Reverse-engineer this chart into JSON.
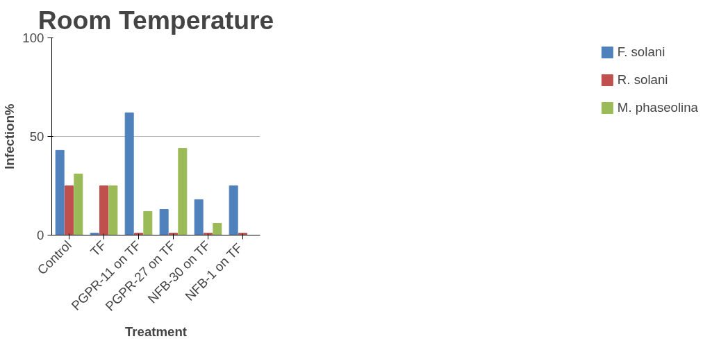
{
  "chart_data": {
    "type": "bar",
    "title": "Room Temperature",
    "xlabel": "Treatment",
    "ylabel": "Infection%",
    "categories": [
      "Control",
      "TF",
      "PGPR-11 on TF",
      "PGPR-27 on TF",
      "NFB-30 on TF",
      "NFB-1  on TF"
    ],
    "series": [
      {
        "name": "F. solani",
        "color": "#4f81bd",
        "values": [
          43,
          1,
          62,
          13,
          18,
          25
        ]
      },
      {
        "name": "R. solani",
        "color": "#c0504d",
        "values": [
          25,
          25,
          1,
          1,
          1,
          1
        ]
      },
      {
        "name": "M. phaseolina",
        "color": "#9bbb59",
        "values": [
          31,
          25,
          12,
          44,
          6,
          0
        ]
      }
    ],
    "ylim": [
      0,
      100
    ],
    "yticks": [
      0,
      50,
      100
    ],
    "grid": "y",
    "legend": "right"
  }
}
